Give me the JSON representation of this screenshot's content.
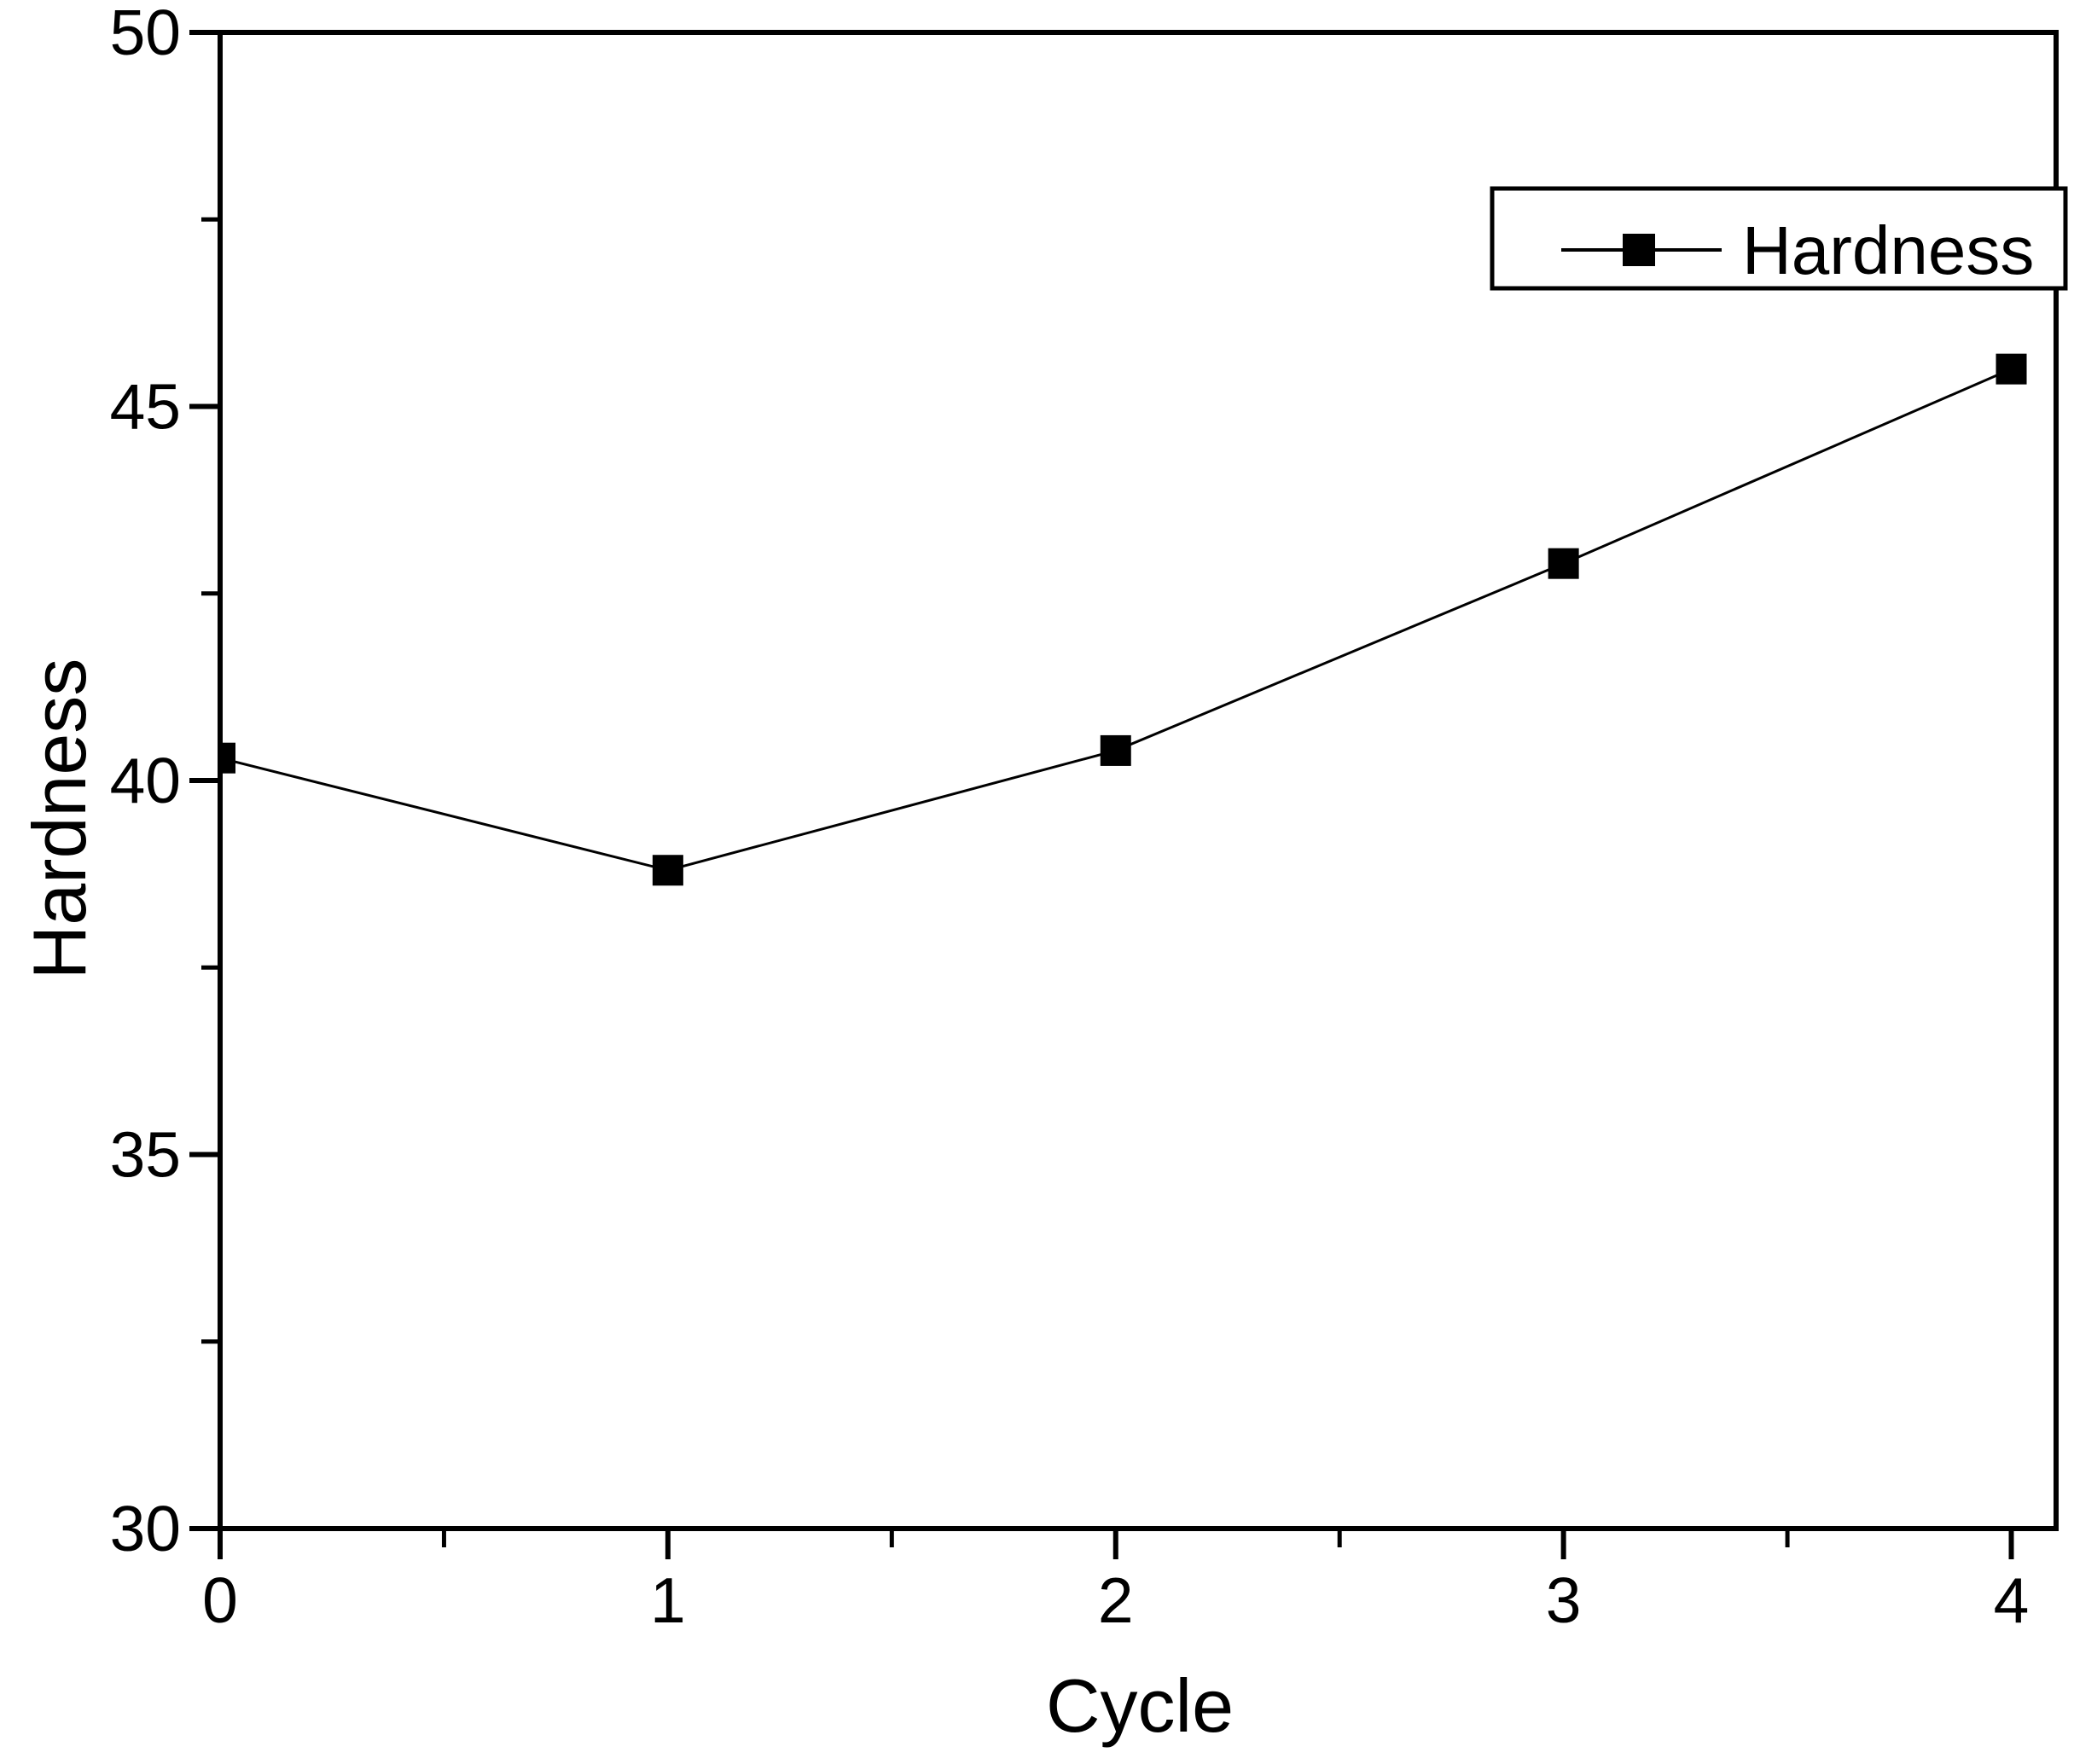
{
  "chart_data": {
    "type": "line",
    "xlabel": "Cycle",
    "ylabel": "Hardness",
    "x": [
      0,
      1,
      2,
      3,
      4
    ],
    "series": [
      {
        "name": "Hardness",
        "values": [
          40.3,
          38.8,
          40.4,
          42.9,
          45.5
        ],
        "marker": "filled-square",
        "color": "#000000"
      }
    ],
    "xlim": [
      0,
      4.1
    ],
    "ylim": [
      30,
      50
    ],
    "x_major_ticks": [
      0,
      1,
      2,
      3,
      4
    ],
    "x_minor_ticks": [
      0.5,
      1.5,
      2.5,
      3.5
    ],
    "y_major_ticks": [
      30,
      35,
      40,
      45,
      50
    ],
    "y_minor_ticks": [
      32.5,
      37.5,
      42.5,
      47.5
    ],
    "grid": "off",
    "legend": {
      "position": "top-right",
      "entries": [
        {
          "label": "Hardness",
          "marker": "filled-square"
        }
      ]
    },
    "colors": {
      "foreground": "#000000",
      "background": "#ffffff"
    }
  }
}
